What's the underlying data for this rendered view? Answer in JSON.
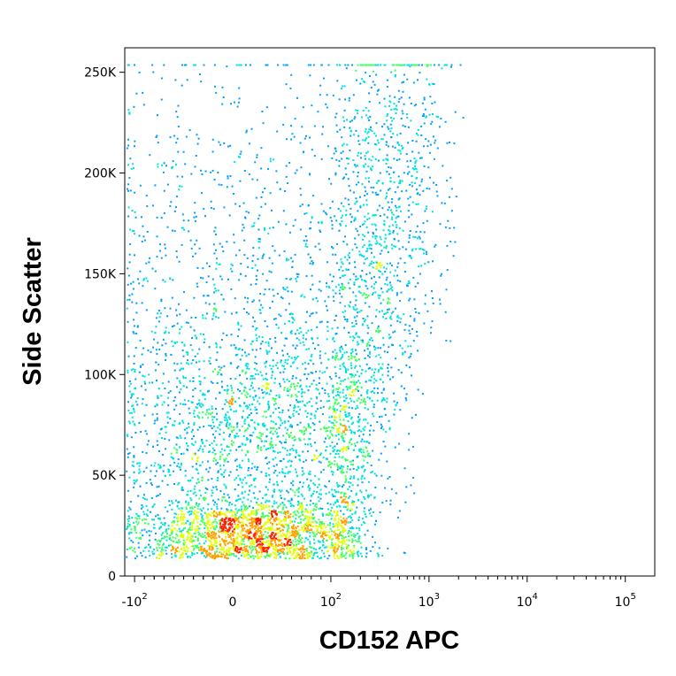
{
  "chart_data": {
    "type": "scatter",
    "subtype": "flow-cytometry density dot plot",
    "xlabel": "CD152 APC",
    "ylabel": "Side Scatter",
    "x_scale": "biexponential",
    "y_scale": "linear",
    "ylim": [
      0,
      262144
    ],
    "x_ticks": [
      {
        "value": -100,
        "base": "-10",
        "exp": "2"
      },
      {
        "value": 0,
        "base": "0",
        "exp": ""
      },
      {
        "value": 100,
        "base": "10",
        "exp": "2"
      },
      {
        "value": 1000,
        "base": "10",
        "exp": "3"
      },
      {
        "value": 10000,
        "base": "10",
        "exp": "4"
      },
      {
        "value": 100000,
        "base": "10",
        "exp": "5"
      }
    ],
    "y_ticks": [
      {
        "value": 0,
        "label": "0"
      },
      {
        "value": 50000,
        "label": "50K"
      },
      {
        "value": 100000,
        "label": "100K"
      },
      {
        "value": 150000,
        "label": "150K"
      },
      {
        "value": 200000,
        "label": "200K"
      },
      {
        "value": 250000,
        "label": "250K"
      }
    ],
    "density_colormap": [
      "#1a1aff",
      "#00a0ff",
      "#00e0e0",
      "#40ff60",
      "#e0ff00",
      "#ffa000",
      "#ff2000"
    ],
    "populations": [
      {
        "x_center": 15,
        "x_spread": 45,
        "y_center": 22000,
        "y_spread": 9000,
        "count": 1800
      },
      {
        "x_center": 30,
        "x_spread": 60,
        "y_center": 70000,
        "y_spread": 35000,
        "count": 2400
      },
      {
        "x_center": 60,
        "x_spread": 150,
        "y_center": 140000,
        "y_spread": 60000,
        "count": 1800
      },
      {
        "x_center": 150,
        "x_spread": 400,
        "y_center": 200000,
        "y_spread": 40000,
        "count": 900
      }
    ]
  }
}
